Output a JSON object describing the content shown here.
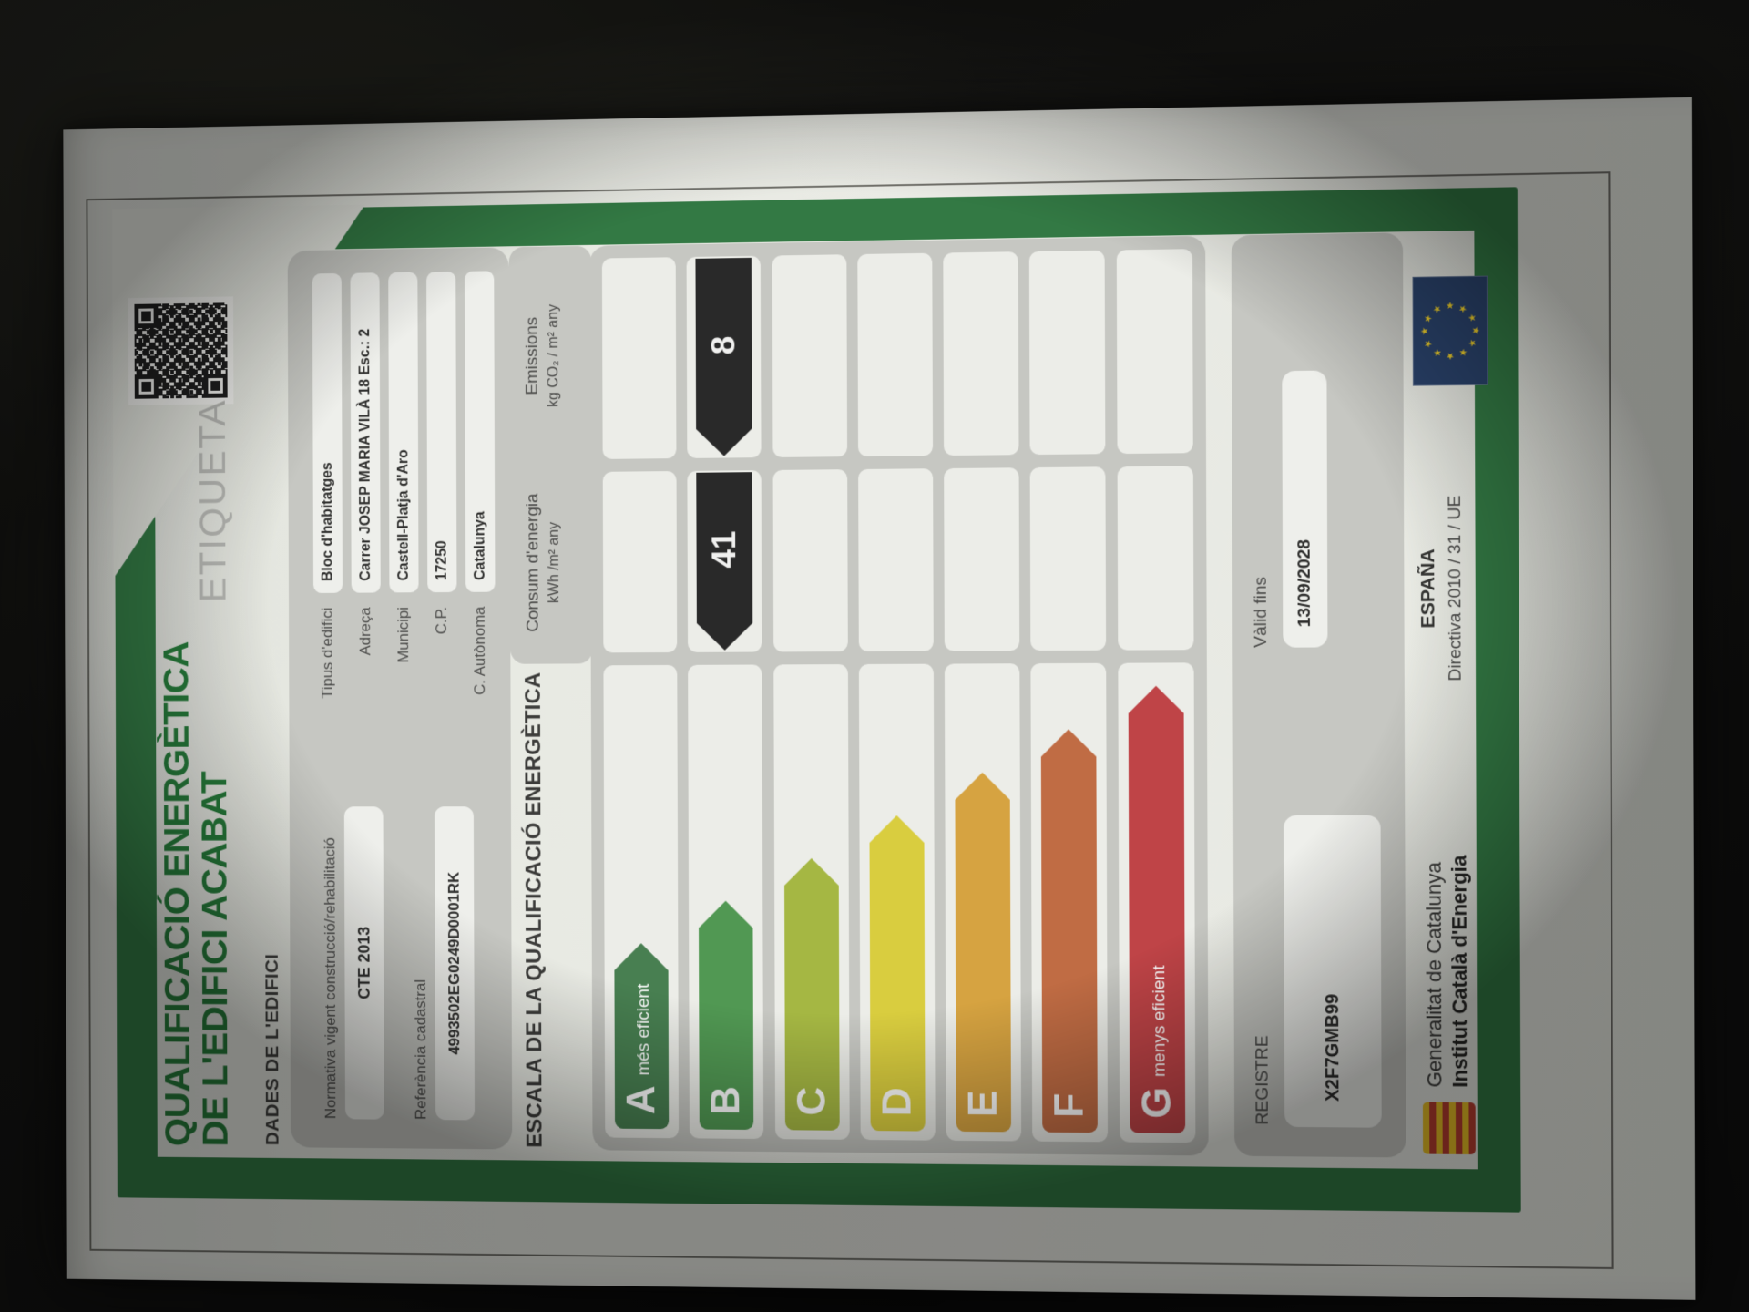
{
  "photo": {
    "surface": "dark leather table",
    "paper_color": "#eaece5",
    "frame_color": "#2d7a40",
    "panel_color": "#c8c9c4"
  },
  "label": {
    "title_line1": "QUALIFICACIÓ ENERGÈTICA",
    "title_line2": "DE L'EDIFICI ACABAT",
    "etiqueta": "ETIQUETA",
    "dades": {
      "header": "DADES DE L'EDIFICI",
      "normativa_label": "Normativa vigent construcció/rehabilitació",
      "normativa_value": "CTE 2013",
      "referencia_label": "Referència cadastral",
      "referencia_value": "4993502EG0249D0001RK",
      "fields": [
        {
          "label": "Tipus d'edifici",
          "value": "Bloc d'habitatges"
        },
        {
          "label": "Adreça",
          "value": "Carrer JOSEP MARIA VILÀ 18 Esc.: 2"
        },
        {
          "label": "Municipi",
          "value": "Castell-Platja d'Aro"
        },
        {
          "label": "C.P.",
          "value": "17250"
        },
        {
          "label": "C. Autònoma",
          "value": "Catalunya"
        }
      ]
    },
    "escala": {
      "header": "ESCALA DE LA QUALIFICACIÓ ENERGÈTICA",
      "consum_title": "Consum d'energia",
      "consum_units": "kWh /m² any",
      "emissions_title": "Emissions",
      "emissions_units": "kg CO₂ / m² any",
      "rating_letter": "B",
      "rating_consum": "41",
      "rating_emissions": "8",
      "tag_color": "#262626",
      "rows": [
        {
          "letter": "A",
          "caption": "més eficient",
          "color": "#43804d",
          "length": 205,
          "consum": "",
          "emissions": ""
        },
        {
          "letter": "B",
          "caption": "",
          "color": "#4c9a4e",
          "length": 252,
          "consum": "41",
          "emissions": "8"
        },
        {
          "letter": "C",
          "caption": "",
          "color": "#a6ba39",
          "length": 299,
          "consum": "",
          "emissions": ""
        },
        {
          "letter": "D",
          "caption": "",
          "color": "#ddd033",
          "length": 346,
          "consum": "",
          "emissions": ""
        },
        {
          "letter": "E",
          "caption": "",
          "color": "#dca437",
          "length": 393,
          "consum": "",
          "emissions": ""
        },
        {
          "letter": "F",
          "caption": "",
          "color": "#c76a3e",
          "length": 440,
          "consum": "",
          "emissions": ""
        },
        {
          "letter": "G",
          "caption": "menys eficient",
          "color": "#c84043",
          "length": 487,
          "consum": "",
          "emissions": ""
        }
      ]
    },
    "registre": {
      "label": "REGISTRE",
      "value": "X2F7GMB99",
      "valid_label": "Vàlid fins",
      "valid_value": "13/09/2028"
    },
    "footer": {
      "gen_line1": "Generalitat de Catalunya",
      "gen_line2": "Institut Català d'Energia",
      "espana": "ESPAÑA",
      "directiva": "Directiva 2010 / 31 / UE"
    }
  }
}
